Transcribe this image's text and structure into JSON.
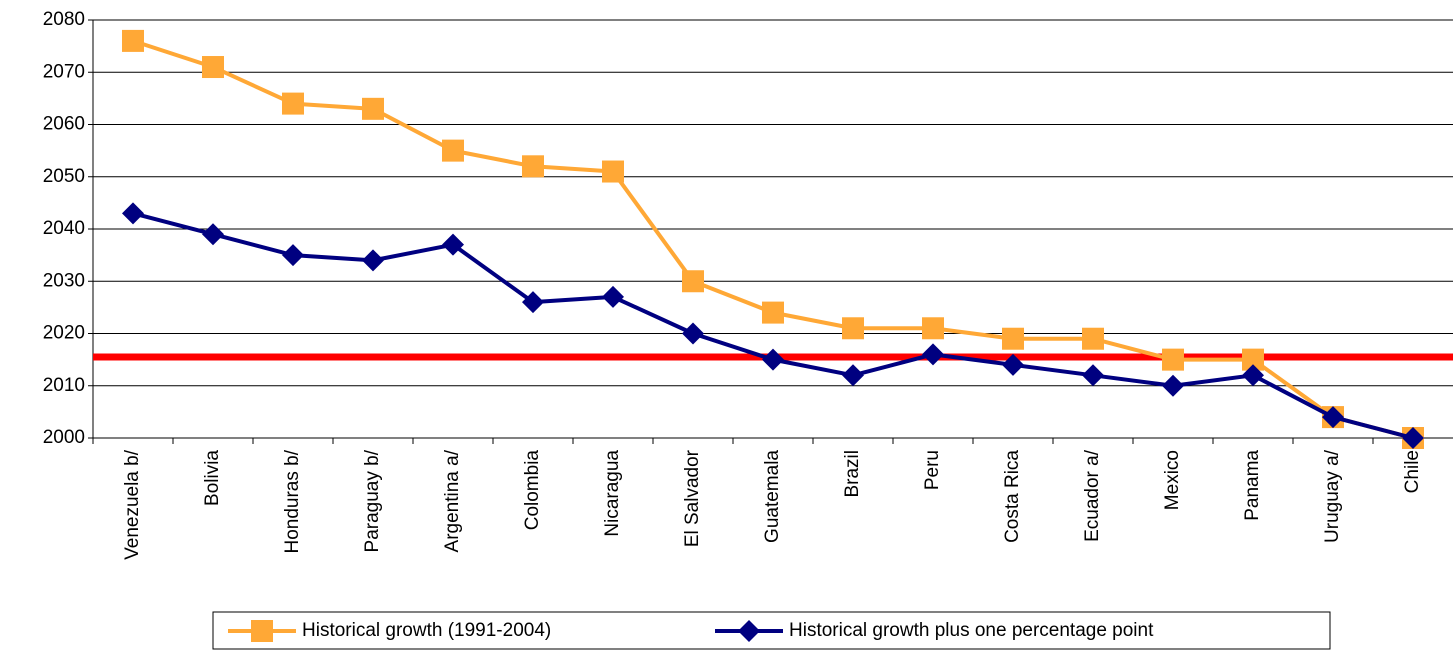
{
  "chart_data": {
    "type": "line",
    "categories": [
      "Venezuela b/",
      "Bolivia",
      "Honduras b/",
      "Paraguay b/",
      "Argentina a/",
      "Colombia",
      "Nicaragua",
      "El Salvador",
      "Guatemala",
      "Brazil",
      "Peru",
      "Costa Rica",
      "Ecuador a/",
      "Mexico",
      "Panama",
      "Uruguay a/",
      "Chile"
    ],
    "series": [
      {
        "name": "Historical growth (1991-2004)",
        "color": "#ffa836",
        "marker": "square",
        "values": [
          2076,
          2071,
          2064,
          2063,
          2055,
          2052,
          2051,
          2030,
          2024,
          2021,
          2021,
          2019,
          2019,
          2015,
          2015,
          2004,
          2000
        ]
      },
      {
        "name": "Historical growth plus one percentage point",
        "color": "#000080",
        "marker": "diamond",
        "values": [
          2043,
          2039,
          2035,
          2034,
          2037,
          2026,
          2027,
          2020,
          2015,
          2012,
          2016,
          2014,
          2012,
          2010,
          2012,
          2004,
          2000
        ]
      }
    ],
    "reference_line": {
      "value": 2015.5,
      "color": "#ff0000"
    },
    "ylim": [
      2000,
      2080
    ],
    "yticks": [
      2000,
      2010,
      2020,
      2030,
      2040,
      2050,
      2060,
      2070,
      2080
    ],
    "grid": true,
    "legend": "bottom"
  }
}
